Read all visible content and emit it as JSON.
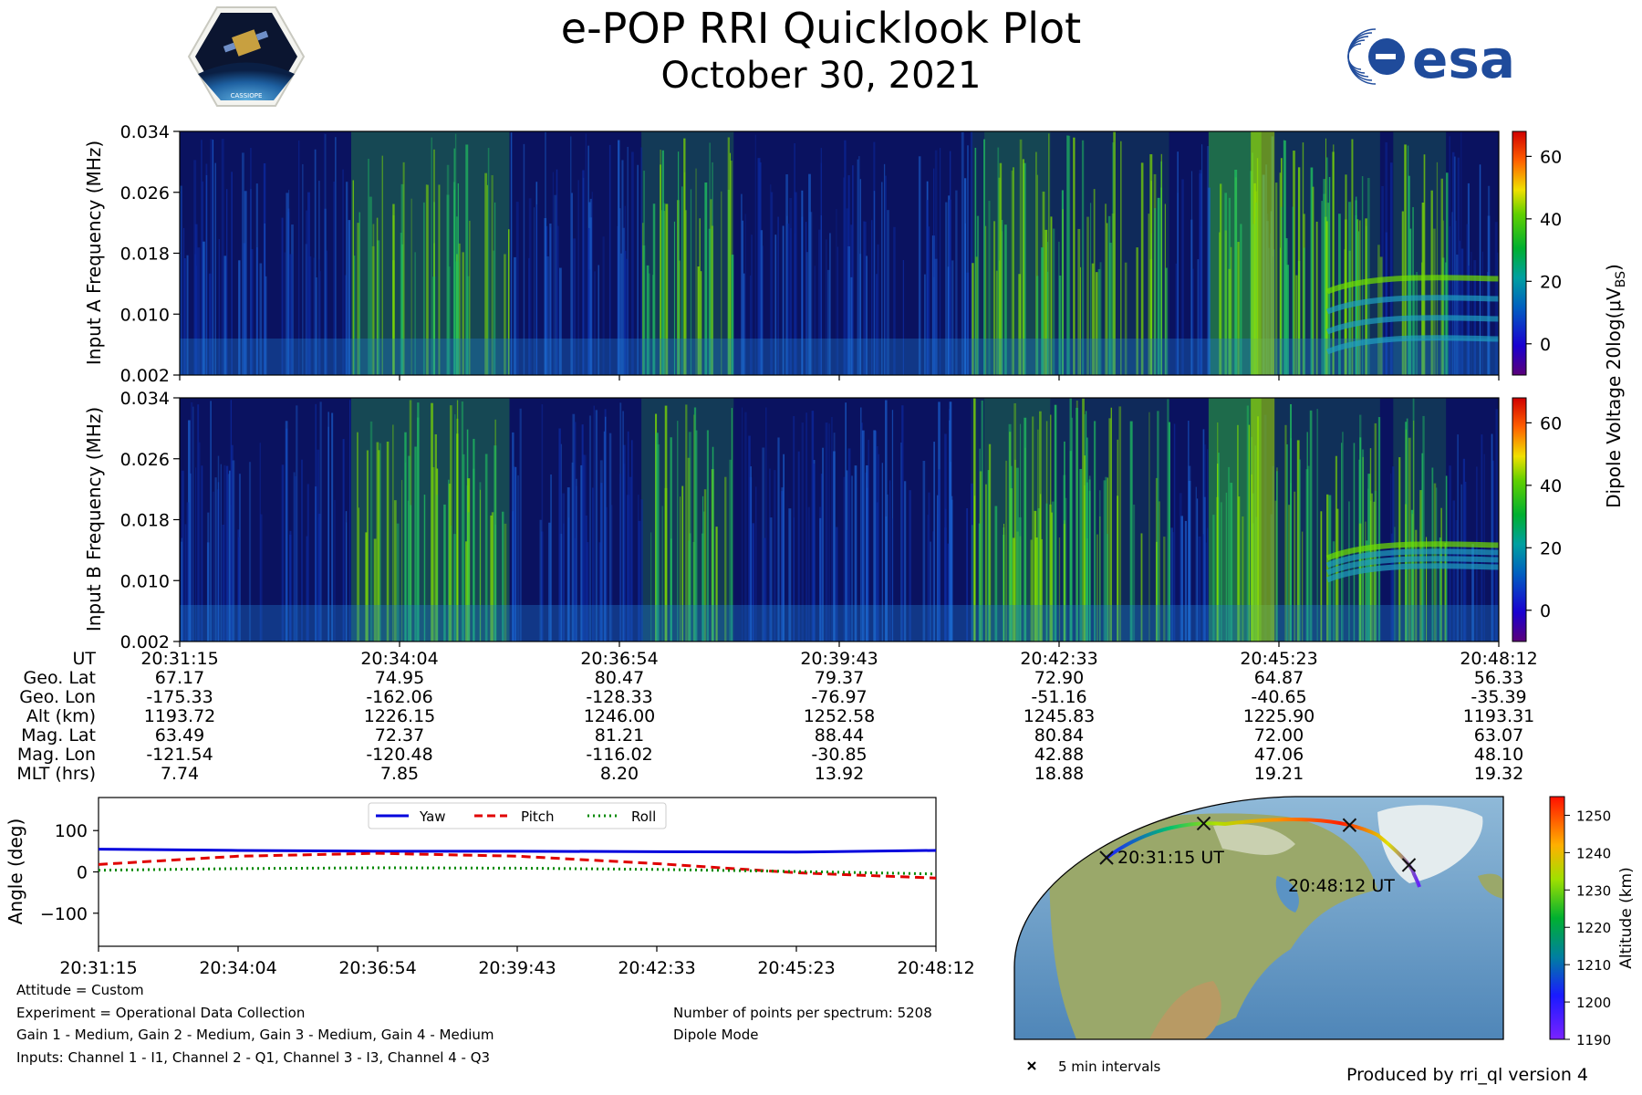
{
  "header": {
    "title": "e-POP RRI Quicklook Plot",
    "date": "October 30, 2021",
    "left_logo_text": "CASSIOPE",
    "right_logo_text": "esa"
  },
  "colors": {
    "yaw": "#0000dd",
    "pitch": "#e00000",
    "roll": "#008800",
    "track": "#222222"
  },
  "chart_data": [
    {
      "type": "heatmap",
      "name": "spectrogram-a",
      "ylabel": "Input A Frequency (MHz)",
      "yticks": [
        "0.002",
        "0.010",
        "0.018",
        "0.026",
        "0.034"
      ],
      "ylim": [
        0.002,
        0.034
      ],
      "x": [
        "20:31:15",
        "20:34:04",
        "20:36:54",
        "20:39:43",
        "20:42:33",
        "20:45:23",
        "20:48:12"
      ]
    },
    {
      "type": "heatmap",
      "name": "spectrogram-b",
      "ylabel": "Input B Frequency (MHz)",
      "yticks": [
        "0.002",
        "0.010",
        "0.018",
        "0.026",
        "0.034"
      ],
      "ylim": [
        0.002,
        0.034
      ],
      "x": [
        "20:31:15",
        "20:34:04",
        "20:36:54",
        "20:39:43",
        "20:42:33",
        "20:45:23",
        "20:48:12"
      ]
    },
    {
      "type": "colorbar",
      "label": "Dipole Voltage 20log(μV",
      "label_sub": "B",
      "label_end": "S",
      "label_close": ")",
      "ticks": [
        "0",
        "20",
        "40",
        "60"
      ],
      "range": [
        -10,
        68
      ]
    },
    {
      "type": "line",
      "name": "attitude",
      "ylabel": "Angle (deg)",
      "ylim": [
        -180,
        180
      ],
      "yticks": [
        "−100",
        "0",
        "100"
      ],
      "ytick_values": [
        -100,
        0,
        100
      ],
      "x": [
        "20:31:15",
        "20:34:04",
        "20:36:54",
        "20:39:43",
        "20:42:33",
        "20:45:23",
        "20:48:12"
      ],
      "legend": "top-center",
      "series": [
        {
          "name": "Yaw",
          "values": [
            55,
            52,
            50,
            50,
            49,
            48,
            52
          ]
        },
        {
          "name": "Pitch",
          "values": [
            18,
            38,
            45,
            38,
            20,
            -2,
            -15
          ]
        },
        {
          "name": "Roll",
          "values": [
            4,
            8,
            10,
            9,
            6,
            1,
            -5
          ]
        }
      ]
    },
    {
      "type": "colorbar",
      "name": "altitude",
      "label": "Altitude (km)",
      "ticks": [
        "1190",
        "1200",
        "1210",
        "1220",
        "1230",
        "1240",
        "1250"
      ],
      "range": [
        1190,
        1255
      ]
    }
  ],
  "ephemeris": {
    "labels": [
      "UT",
      "Geo. Lat",
      "Geo. Lon",
      "Alt (km)",
      "Mag. Lat",
      "Mag. Lon",
      "MLT (hrs)"
    ],
    "columns": [
      [
        "20:31:15",
        "67.17",
        "-175.33",
        "1193.72",
        "63.49",
        "-121.54",
        "7.74"
      ],
      [
        "20:34:04",
        "74.95",
        "-162.06",
        "1226.15",
        "72.37",
        "-120.48",
        "7.85"
      ],
      [
        "20:36:54",
        "80.47",
        "-128.33",
        "1246.00",
        "81.21",
        "-116.02",
        "8.20"
      ],
      [
        "20:39:43",
        "79.37",
        "-76.97",
        "1252.58",
        "88.44",
        "-30.85",
        "13.92"
      ],
      [
        "20:42:33",
        "72.90",
        "-51.16",
        "1245.83",
        "80.84",
        "42.88",
        "18.88"
      ],
      [
        "20:45:23",
        "64.87",
        "-40.65",
        "1225.90",
        "72.00",
        "47.06",
        "19.21"
      ],
      [
        "20:48:12",
        "56.33",
        "-35.39",
        "1193.31",
        "63.07",
        "48.10",
        "19.32"
      ]
    ]
  },
  "map": {
    "start_label": "20:31:15 UT",
    "end_label": "20:48:12 UT",
    "marker_legend": "5 min intervals"
  },
  "info": {
    "attitude": "Attitude = Custom",
    "experiment": "Experiment = Operational Data Collection",
    "gains": "Gain 1 - Medium, Gain 2 - Medium, Gain 3 - Medium, Gain 4 - Medium",
    "inputs": "Inputs: Channel 1 - I1, Channel 2 - Q1, Channel 3 - I3, Channel 4 - Q3",
    "points": "Number of points per spectrum: 5208",
    "mode": "Dipole Mode",
    "produced": "Produced by rri_ql version 4"
  }
}
